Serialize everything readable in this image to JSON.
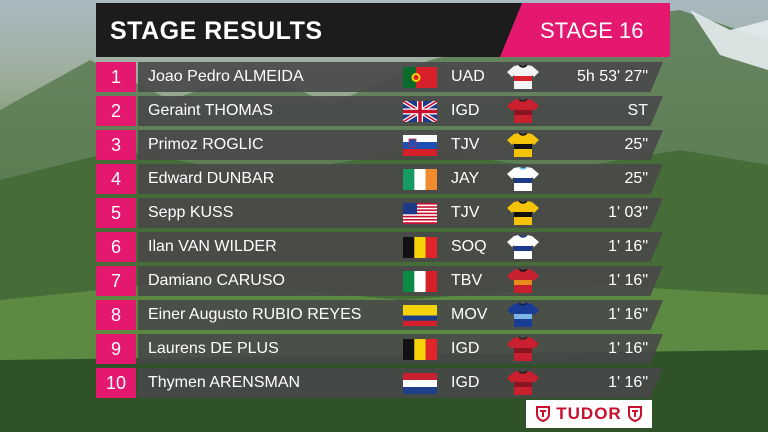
{
  "header": {
    "title": "STAGE RESULTS",
    "stage": "STAGE 16"
  },
  "results": [
    {
      "pos": "1",
      "name": "Joao Pedro ALMEIDA",
      "flag": "portugal-flag",
      "team": "UAD",
      "jersey": "uae-jersey",
      "time": "5h 53' 27\""
    },
    {
      "pos": "2",
      "name": "Geraint THOMAS",
      "flag": "uk-flag",
      "team": "IGD",
      "jersey": "ineos-jersey",
      "time": "ST"
    },
    {
      "pos": "3",
      "name": "Primoz ROGLIC",
      "flag": "slovenia-flag",
      "team": "TJV",
      "jersey": "jumbo-jersey",
      "time": "25\""
    },
    {
      "pos": "4",
      "name": "Edward DUNBAR",
      "flag": "ireland-flag",
      "team": "JAY",
      "jersey": "jayco-jersey",
      "time": "25\""
    },
    {
      "pos": "5",
      "name": "Sepp KUSS",
      "flag": "usa-flag",
      "team": "TJV",
      "jersey": "jumbo-jersey",
      "time": "1' 03\""
    },
    {
      "pos": "6",
      "name": "Ilan VAN WILDER",
      "flag": "belgium-flag",
      "team": "SOQ",
      "jersey": "soudal-jersey",
      "time": "1' 16\""
    },
    {
      "pos": "7",
      "name": "Damiano CARUSO",
      "flag": "italy-flag",
      "team": "TBV",
      "jersey": "bahrain-jersey",
      "time": "1' 16\""
    },
    {
      "pos": "8",
      "name": "Einer Augusto RUBIO REYES",
      "flag": "colombia-flag",
      "team": "MOV",
      "jersey": "movistar-jersey",
      "time": "1' 16\""
    },
    {
      "pos": "9",
      "name": "Laurens DE PLUS",
      "flag": "belgium-flag",
      "team": "IGD",
      "jersey": "ineos-jersey",
      "time": "1' 16\""
    },
    {
      "pos": "10",
      "name": "Thymen ARENSMAN",
      "flag": "netherlands-flag",
      "team": "IGD",
      "jersey": "ineos-jersey",
      "time": "1' 16\""
    }
  ],
  "sponsor": {
    "name": "TUDOR",
    "color": "#c8102e"
  },
  "colors": {
    "accent": "#e5186f",
    "header_bg": "#1c1c1c",
    "row_bg": "#484848"
  }
}
